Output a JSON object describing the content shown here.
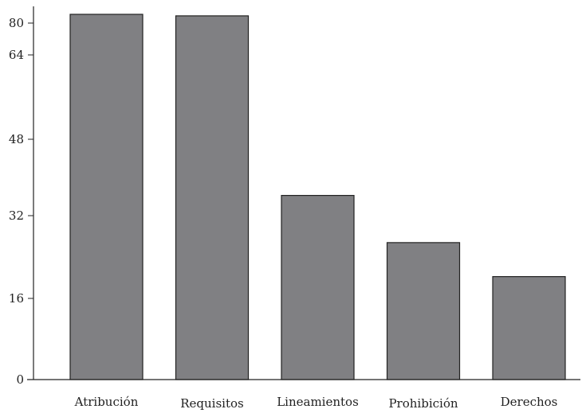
{
  "chart_data": {
    "type": "bar",
    "categories": [
      "Atribución",
      "Requisitos",
      "Lineamientos",
      "Prohibición",
      "Derechos"
    ],
    "values": [
      72,
      71.7,
      36.3,
      27,
      20.3
    ],
    "yticks": [
      0,
      16,
      32,
      48,
      64,
      80
    ],
    "ylim": [
      0,
      74
    ],
    "title": "",
    "xlabel": "",
    "ylabel": "",
    "grid": false,
    "legend": "none",
    "bar_color": "#808083",
    "outline_color": "#222222"
  }
}
